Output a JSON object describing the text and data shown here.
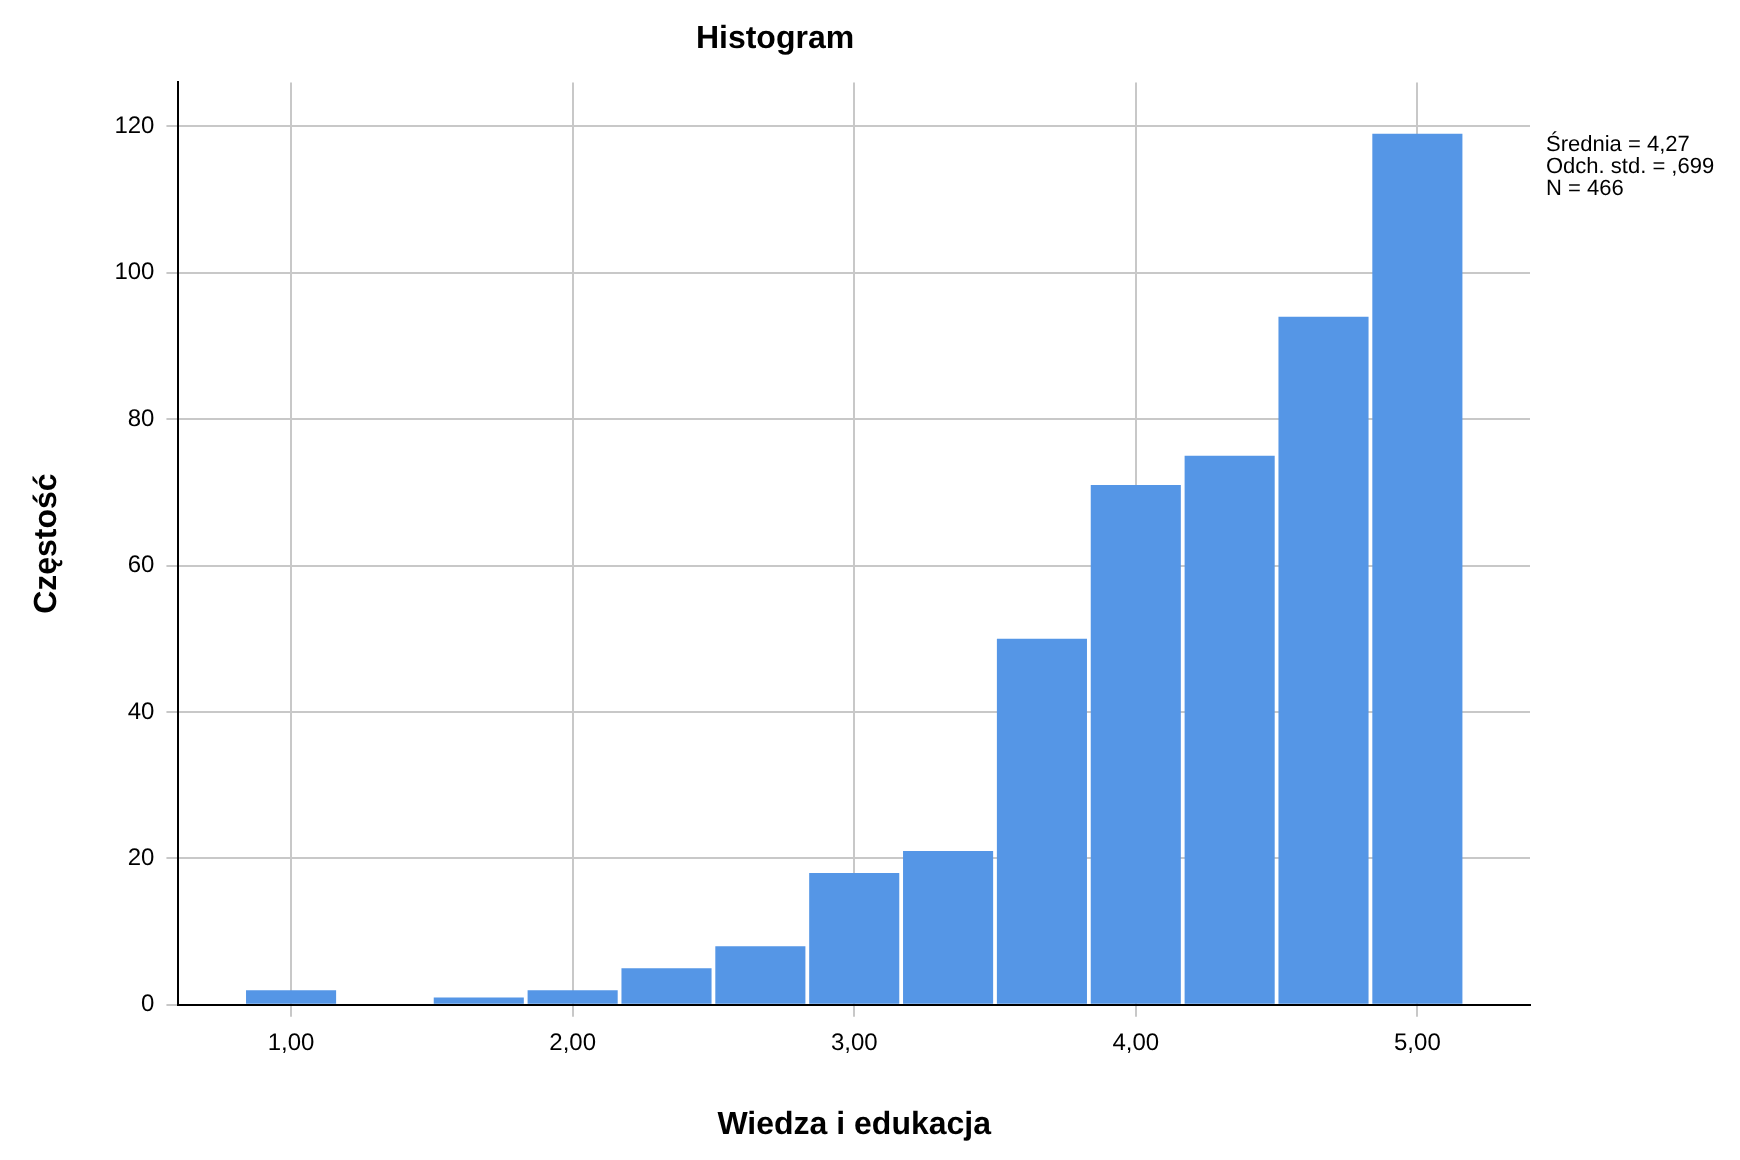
{
  "chart_data": {
    "type": "histogram",
    "title": "Histogram",
    "xlabel": "Wiedza i edukacja",
    "ylabel": "Częstość",
    "bins": [
      0.8333,
      1.1667,
      1.5,
      1.8333,
      2.1667,
      2.5,
      2.8333,
      3.1667,
      3.5,
      3.8333,
      4.1667,
      4.5,
      4.8333,
      5.1667
    ],
    "values": [
      2,
      0,
      1,
      2,
      5,
      8,
      18,
      21,
      50,
      71,
      75,
      94,
      119
    ],
    "color": "#5596e6",
    "xlim": [
      0.6,
      5.4
    ],
    "xticks": [
      {
        "value": 1,
        "label": "1,00"
      },
      {
        "value": 2,
        "label": "2,00"
      },
      {
        "value": 3,
        "label": "3,00"
      },
      {
        "value": 4,
        "label": "4,00"
      },
      {
        "value": 5,
        "label": "5,00"
      }
    ],
    "ylim": [
      0,
      126
    ],
    "yticks": [
      0,
      20,
      40,
      60,
      80,
      100,
      120
    ],
    "grid": true,
    "legend": false,
    "annotations": [
      "Średnia = 4,27",
      "Odch. std. = ,699",
      "N = 466"
    ]
  }
}
